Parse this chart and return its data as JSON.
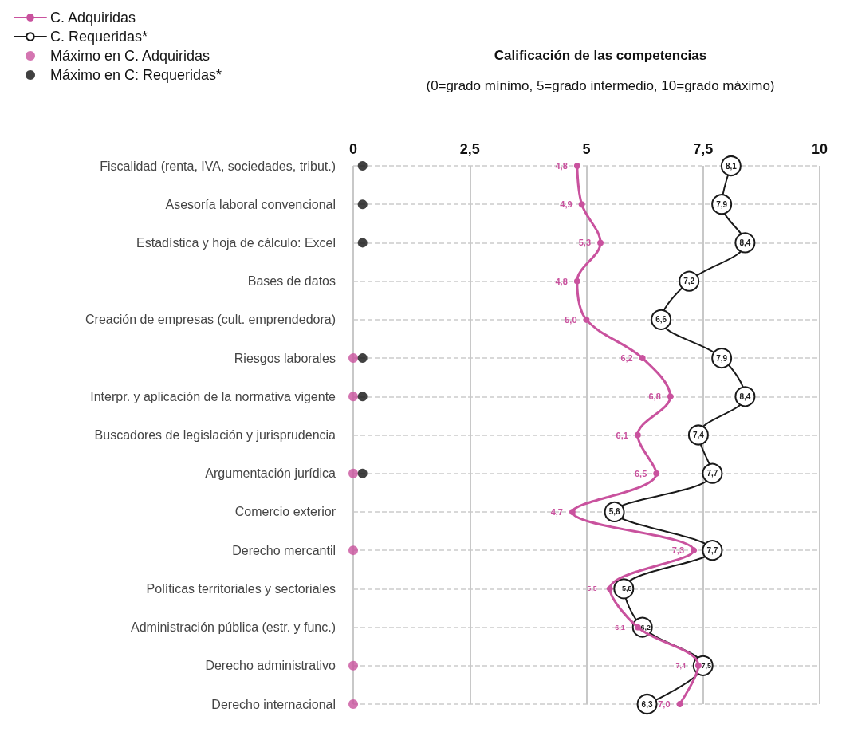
{
  "chart_data": {
    "type": "line",
    "orientation": "horizontal",
    "title": "Calificación de las competencias",
    "subtitle": "(0=grado mínimo, 5=grado intermedio, 10=grado máximo)",
    "categories": [
      "Fiscalidad (renta, IVA, sociedades, tribut.)",
      "Asesoría laboral convencional",
      "Estadística y hoja de cálculo: Excel",
      "Bases de datos",
      "Creación de empresas (cult. emprendedora)",
      "Riesgos laborales",
      "Interpr. y aplicación de la normativa vigente",
      "Buscadores de legislación y jurisprudencia",
      "Argumentación jurídica",
      "Comercio exterior",
      "Derecho mercantil",
      "Políticas territoriales y sectoriales",
      "Administración pública (estr. y func.)",
      "Derecho administrativo",
      "Derecho internacional"
    ],
    "series": [
      {
        "name": "C. Adquiridas",
        "color": "#c9529e",
        "values": [
          4.8,
          4.9,
          5.3,
          4.8,
          5.0,
          6.2,
          6.8,
          6.1,
          6.5,
          4.7,
          7.3,
          5.5,
          6.1,
          7.4,
          7.0
        ],
        "value_labels": [
          "4,8",
          "4,9",
          "5,3",
          "4,8",
          "5,0",
          "6,2",
          "6,8",
          "6,1",
          "6,5",
          "4,7",
          "7,3",
          "5,5",
          "6,1",
          "7,4",
          "7,0"
        ]
      },
      {
        "name": "C. Requeridas*",
        "color": "#1a1a1a",
        "values": [
          8.1,
          7.9,
          8.4,
          7.2,
          6.6,
          7.9,
          8.4,
          7.4,
          7.7,
          5.6,
          7.7,
          5.8,
          6.2,
          7.5,
          6.3
        ],
        "value_labels": [
          "8,1",
          "7,9",
          "8,4",
          "7,2",
          "6,6",
          "7,9",
          "8,4",
          "7,4",
          "7,7",
          "5,6",
          "7,7",
          "5,8",
          "6,2",
          "7,5",
          "6,3"
        ]
      },
      {
        "name": "Máximo en C. Adquiridas",
        "type": "scatter",
        "color": "#c9529e",
        "values": [
          null,
          null,
          null,
          null,
          null,
          0,
          0,
          null,
          0,
          null,
          0,
          null,
          null,
          0,
          0
        ]
      },
      {
        "name": "Máximo en C: Requeridas*",
        "type": "scatter",
        "color": "#111111",
        "values": [
          0.2,
          0.2,
          0.2,
          null,
          null,
          0.2,
          0.2,
          null,
          0.2,
          null,
          null,
          null,
          null,
          null,
          null
        ]
      }
    ],
    "xlim": [
      0,
      10
    ],
    "xticks": [
      0,
      {
        "value": 2.5,
        "label": "2,5"
      },
      5,
      {
        "value": 7.5,
        "label": "7,5"
      },
      10
    ],
    "grid": true,
    "legend": "top left",
    "marker": "circle",
    "line_style": "solid"
  }
}
